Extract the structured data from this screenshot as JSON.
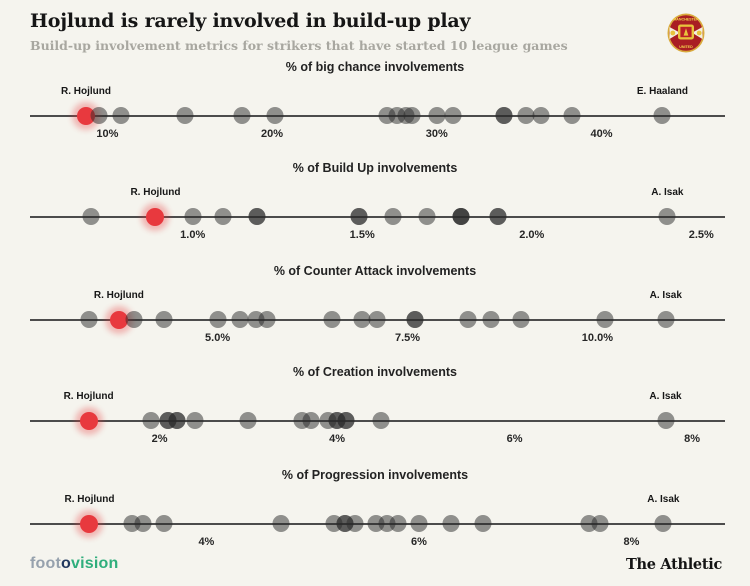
{
  "header": {
    "title": "Hojlund is rarely involved in build-up play",
    "subtitle": "Build-up involvement metrics for strikers that have started 10 league games",
    "club_badge": "Manchester United crest"
  },
  "footer": {
    "logo_foot": "foot",
    "logo_o": "o",
    "logo_vision": "vision",
    "athletic": "The Athletic"
  },
  "colors": {
    "background": "#f5f4ee",
    "dot_gray": "rgba(42,42,42,0.5)",
    "highlight_red": "#e8393e",
    "axis": "#4c4c4c",
    "subtitle_gray": "#a8a7a0"
  },
  "chart_data": [
    {
      "type": "scatter",
      "variant": "strip-plot",
      "title": "% of big chance involvements",
      "axis_domain": [
        5.3,
        47.5
      ],
      "grid": false,
      "ticks": [
        {
          "v": 10,
          "label": "10%"
        },
        {
          "v": 20,
          "label": "20%"
        },
        {
          "v": 30,
          "label": "30%"
        },
        {
          "v": 40,
          "label": "40%"
        }
      ],
      "points": [
        {
          "v": 8.7,
          "player": "R. Hojlund",
          "highlight": true
        },
        {
          "v": 9.5
        },
        {
          "v": 10.8
        },
        {
          "v": 14.7
        },
        {
          "v": 18.2
        },
        {
          "v": 20.2
        },
        {
          "v": 27.0
        },
        {
          "v": 27.6
        },
        {
          "v": 28.1
        },
        {
          "v": 28.5
        },
        {
          "v": 30.0
        },
        {
          "v": 31.0
        },
        {
          "v": 34.1,
          "n": 2
        },
        {
          "v": 35.4
        },
        {
          "v": 36.3
        },
        {
          "v": 38.2
        },
        {
          "v": 43.7,
          "player": "E. Haaland"
        }
      ]
    },
    {
      "type": "scatter",
      "variant": "strip-plot",
      "title": "% of Build Up involvements",
      "axis_domain": [
        0.52,
        2.57
      ],
      "grid": false,
      "ticks": [
        {
          "v": 1.0,
          "label": "1.0%"
        },
        {
          "v": 1.5,
          "label": "1.5%"
        },
        {
          "v": 2.0,
          "label": "2.0%"
        },
        {
          "v": 2.5,
          "label": "2.5%"
        }
      ],
      "points": [
        {
          "v": 0.7
        },
        {
          "v": 0.89,
          "player": "R. Hojlund",
          "highlight": true
        },
        {
          "v": 1.0
        },
        {
          "v": 1.09
        },
        {
          "v": 1.19,
          "n": 2
        },
        {
          "v": 1.49,
          "n": 2
        },
        {
          "v": 1.59
        },
        {
          "v": 1.69
        },
        {
          "v": 1.79,
          "n": 3
        },
        {
          "v": 1.9,
          "n": 2
        },
        {
          "v": 2.4,
          "player": "A. Isak"
        }
      ]
    },
    {
      "type": "scatter",
      "variant": "strip-plot",
      "title": "% of Counter Attack involvements",
      "axis_domain": [
        2.53,
        11.68
      ],
      "grid": false,
      "ticks": [
        {
          "v": 5.0,
          "label": "5.0%"
        },
        {
          "v": 7.5,
          "label": "7.5%"
        },
        {
          "v": 10.0,
          "label": "10.0%"
        }
      ],
      "points": [
        {
          "v": 3.3
        },
        {
          "v": 3.7,
          "player": "R. Hojlund",
          "highlight": true
        },
        {
          "v": 3.9
        },
        {
          "v": 4.3
        },
        {
          "v": 5.0
        },
        {
          "v": 5.3
        },
        {
          "v": 5.5
        },
        {
          "v": 5.65
        },
        {
          "v": 6.5
        },
        {
          "v": 6.9
        },
        {
          "v": 7.1
        },
        {
          "v": 7.6,
          "n": 2
        },
        {
          "v": 8.3
        },
        {
          "v": 8.6
        },
        {
          "v": 9.0
        },
        {
          "v": 10.1
        },
        {
          "v": 10.9,
          "player": "A. Isak"
        }
      ]
    },
    {
      "type": "scatter",
      "variant": "strip-plot",
      "title": "% of Creation involvements",
      "axis_domain": [
        0.54,
        8.37
      ],
      "grid": false,
      "ticks": [
        {
          "v": 2,
          "label": "2%"
        },
        {
          "v": 4,
          "label": "4%"
        },
        {
          "v": 6,
          "label": "6%"
        },
        {
          "v": 8,
          "label": "8%"
        }
      ],
      "points": [
        {
          "v": 1.2,
          "player": "R. Hojlund",
          "highlight": true
        },
        {
          "v": 1.9
        },
        {
          "v": 2.1,
          "n": 2
        },
        {
          "v": 2.2,
          "n": 2
        },
        {
          "v": 2.4
        },
        {
          "v": 3.0
        },
        {
          "v": 3.6
        },
        {
          "v": 3.7
        },
        {
          "v": 3.9
        },
        {
          "v": 4.0,
          "n": 2
        },
        {
          "v": 4.1,
          "n": 2
        },
        {
          "v": 4.5
        },
        {
          "v": 7.7,
          "player": "A. Isak"
        }
      ]
    },
    {
      "type": "scatter",
      "variant": "strip-plot",
      "title": "% of Progression involvements",
      "axis_domain": [
        2.34,
        8.88
      ],
      "grid": false,
      "ticks": [
        {
          "v": 4,
          "label": "4%"
        },
        {
          "v": 6,
          "label": "6%"
        },
        {
          "v": 8,
          "label": "8%"
        }
      ],
      "points": [
        {
          "v": 2.9,
          "player": "R. Hojlund",
          "highlight": true
        },
        {
          "v": 3.3
        },
        {
          "v": 3.4
        },
        {
          "v": 3.6
        },
        {
          "v": 4.7
        },
        {
          "v": 5.2
        },
        {
          "v": 5.3,
          "n": 2
        },
        {
          "v": 5.4
        },
        {
          "v": 5.6
        },
        {
          "v": 5.7
        },
        {
          "v": 5.8
        },
        {
          "v": 6.0
        },
        {
          "v": 6.3
        },
        {
          "v": 6.6
        },
        {
          "v": 7.6
        },
        {
          "v": 7.7
        },
        {
          "v": 8.3,
          "player": "A. Isak"
        }
      ]
    }
  ]
}
